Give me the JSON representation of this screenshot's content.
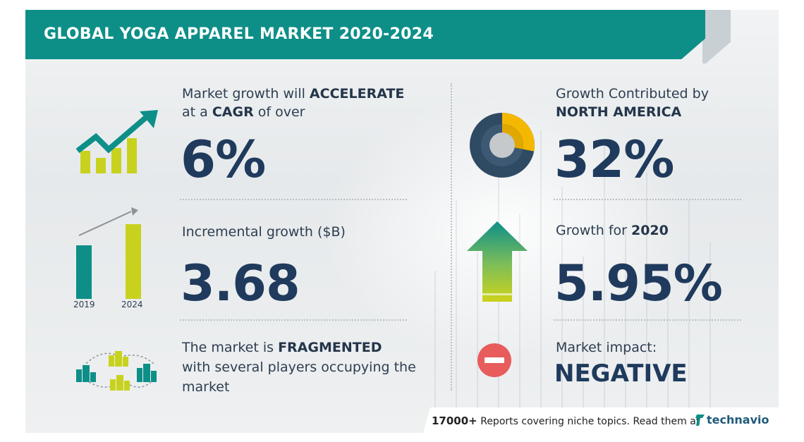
{
  "header": {
    "title": "GLOBAL YOGA APPAREL MARKET 2020-2024"
  },
  "cagr": {
    "line1_prefix": "Market growth will ",
    "line1_strong": "ACCELERATE",
    "line2_prefix": "at a ",
    "line2_strong": "CAGR",
    "line2_suffix": " of over",
    "value": "6%"
  },
  "incremental": {
    "label": "Incremental growth ($B)",
    "value": "3.68",
    "bar_labels": [
      "2019",
      "2024"
    ]
  },
  "fragmented": {
    "line1_prefix": "The market is ",
    "line1_strong": "FRAGMENTED",
    "line2": "with several players occupying the",
    "line3": "market"
  },
  "region": {
    "line1": "Growth Contributed by",
    "line2_strong": "NORTH AMERICA",
    "value": "32%"
  },
  "yoy": {
    "prefix": "Growth for ",
    "year_strong": "2020",
    "value": "5.95%"
  },
  "impact": {
    "label": "Market impact:",
    "value": "NEGATIVE"
  },
  "footer": {
    "count": "17000+",
    "text": " Reports covering niche topics. Read them at",
    "brand": "technavio"
  },
  "colors": {
    "teal": "#0d8f88",
    "lime": "#c8d21e",
    "yellow": "#f5b800",
    "navy": "#1f3a5c",
    "red": "#e85c5c"
  }
}
